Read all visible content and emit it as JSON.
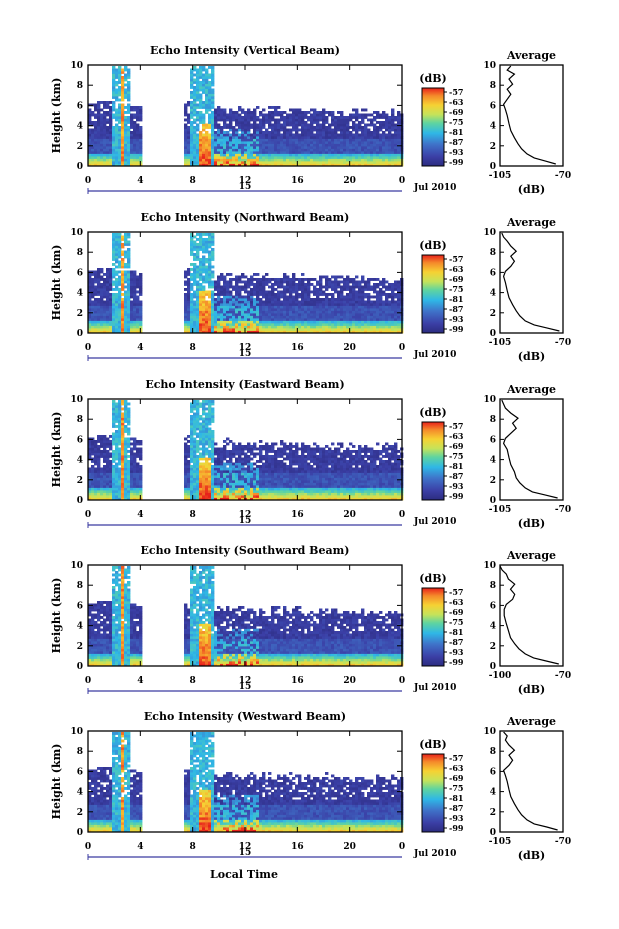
{
  "figure": {
    "month_label": "Jul 2010",
    "day_label": "15",
    "bottom_xlabel": "Local Time",
    "ylabel": "Height (km)",
    "cb_unit": "(dB)",
    "avg_title": "Average",
    "avg_xlabel": "(dB)",
    "colors": {
      "low": "#2c2c80",
      "high": "#e8211b",
      "axis": "#000000"
    }
  },
  "chart_data": [
    {
      "type": "heatmap",
      "title": "Echo Intensity (Vertical Beam)",
      "xlabel": "Local Time",
      "ylabel": "Height (km)",
      "x_ticks": [
        "0",
        "4",
        "8",
        "12",
        "16",
        "20",
        "0"
      ],
      "y_ticks": [
        "0",
        "2",
        "4",
        "6",
        "8",
        "10"
      ],
      "xlim": [
        0,
        24
      ],
      "ylim": [
        0,
        10
      ],
      "data_gap_hours": [
        4,
        7.3
      ],
      "colorbar": {
        "unit": "(dB)",
        "labels": [
          "-57",
          "-63",
          "-69",
          "-75",
          "-81",
          "-87",
          "-93",
          "-99"
        ]
      },
      "average_profile": {
        "title": "Average",
        "xlabel": "(dB)",
        "xlim": [
          -105,
          -70
        ],
        "x_ticks": [
          "-105",
          "-70"
        ],
        "y_ticks": [
          "0",
          "2",
          "4",
          "6",
          "8",
          "10"
        ],
        "points": [
          [
            -74,
            0.2
          ],
          [
            -80,
            0.5
          ],
          [
            -86,
            0.8
          ],
          [
            -90,
            1.2
          ],
          [
            -93,
            1.7
          ],
          [
            -95,
            2.2
          ],
          [
            -97,
            2.8
          ],
          [
            -99,
            3.5
          ],
          [
            -100,
            4.2
          ],
          [
            -101,
            5.0
          ],
          [
            -102,
            5.6
          ],
          [
            -103,
            6.1
          ],
          [
            -101,
            6.6
          ],
          [
            -99,
            7.1
          ],
          [
            -101,
            7.6
          ],
          [
            -98,
            8.1
          ],
          [
            -100,
            8.6
          ],
          [
            -97,
            9.1
          ],
          [
            -101,
            9.5
          ],
          [
            -99,
            9.9
          ]
        ]
      }
    },
    {
      "type": "heatmap",
      "title": "Echo Intensity (Northward Beam)",
      "xlabel": "Local Time",
      "ylabel": "Height (km)",
      "x_ticks": [
        "0",
        "4",
        "8",
        "12",
        "16",
        "20",
        "0"
      ],
      "y_ticks": [
        "0",
        "2",
        "4",
        "6",
        "8",
        "10"
      ],
      "xlim": [
        0,
        24
      ],
      "ylim": [
        0,
        10
      ],
      "data_gap_hours": [
        4,
        7.3
      ],
      "colorbar": {
        "unit": "(dB)",
        "labels": [
          "-57",
          "-63",
          "-69",
          "-75",
          "-81",
          "-87",
          "-93",
          "-99"
        ]
      },
      "average_profile": {
        "title": "Average",
        "xlabel": "(dB)",
        "xlim": [
          -105,
          -70
        ],
        "x_ticks": [
          "-105",
          "-70"
        ],
        "y_ticks": [
          "0",
          "2",
          "4",
          "6",
          "8",
          "10"
        ],
        "points": [
          [
            -72,
            0.2
          ],
          [
            -79,
            0.5
          ],
          [
            -86,
            0.8
          ],
          [
            -91,
            1.2
          ],
          [
            -94,
            1.7
          ],
          [
            -96,
            2.2
          ],
          [
            -98,
            2.8
          ],
          [
            -100,
            3.5
          ],
          [
            -101,
            4.2
          ],
          [
            -102,
            5.0
          ],
          [
            -103,
            5.6
          ],
          [
            -102,
            6.1
          ],
          [
            -99,
            6.6
          ],
          [
            -97,
            7.1
          ],
          [
            -99,
            7.6
          ],
          [
            -96,
            8.1
          ],
          [
            -99,
            8.6
          ],
          [
            -101,
            9.1
          ],
          [
            -103,
            9.5
          ],
          [
            -104,
            9.9
          ]
        ]
      }
    },
    {
      "type": "heatmap",
      "title": "Echo Intensity (Eastward Beam)",
      "xlabel": "Local Time",
      "ylabel": "Height (km)",
      "x_ticks": [
        "0",
        "4",
        "8",
        "12",
        "16",
        "20",
        "0"
      ],
      "y_ticks": [
        "0",
        "2",
        "4",
        "6",
        "8",
        "10"
      ],
      "xlim": [
        0,
        24
      ],
      "ylim": [
        0,
        10
      ],
      "data_gap_hours": [
        4,
        7.3
      ],
      "colorbar": {
        "unit": "(dB)",
        "labels": [
          "-57",
          "-63",
          "-69",
          "-75",
          "-81",
          "-87",
          "-93",
          "-99"
        ]
      },
      "average_profile": {
        "title": "Average",
        "xlabel": "(dB)",
        "xlim": [
          -105,
          -70
        ],
        "x_ticks": [
          "-105",
          "-70"
        ],
        "y_ticks": [
          "0",
          "2",
          "4",
          "6",
          "8",
          "10"
        ],
        "points": [
          [
            -73,
            0.2
          ],
          [
            -80,
            0.5
          ],
          [
            -87,
            0.8
          ],
          [
            -91,
            1.2
          ],
          [
            -94,
            1.7
          ],
          [
            -96,
            2.2
          ],
          [
            -97,
            2.8
          ],
          [
            -99,
            3.5
          ],
          [
            -100,
            4.2
          ],
          [
            -101,
            5.0
          ],
          [
            -103,
            5.6
          ],
          [
            -102,
            6.1
          ],
          [
            -99,
            6.6
          ],
          [
            -96,
            7.1
          ],
          [
            -98,
            7.6
          ],
          [
            -95,
            8.1
          ],
          [
            -99,
            8.6
          ],
          [
            -102,
            9.1
          ],
          [
            -103,
            9.5
          ],
          [
            -104,
            9.9
          ]
        ]
      }
    },
    {
      "type": "heatmap",
      "title": "Echo Intensity (Southward Beam)",
      "xlabel": "Local Time",
      "ylabel": "Height (km)",
      "x_ticks": [
        "0",
        "4",
        "8",
        "12",
        "16",
        "20",
        "0"
      ],
      "y_ticks": [
        "0",
        "2",
        "4",
        "6",
        "8",
        "10"
      ],
      "xlim": [
        0,
        24
      ],
      "ylim": [
        0,
        10
      ],
      "data_gap_hours": [
        4,
        7.3
      ],
      "colorbar": {
        "unit": "(dB)",
        "labels": [
          "-57",
          "-63",
          "-69",
          "-75",
          "-81",
          "-87",
          "-93",
          "-99"
        ]
      },
      "average_profile": {
        "title": "Average",
        "xlabel": "(dB)",
        "xlim": [
          -100,
          -70
        ],
        "x_ticks": [
          "-100",
          "-70"
        ],
        "y_ticks": [
          "0",
          "2",
          "4",
          "6",
          "8",
          "10"
        ],
        "points": [
          [
            -72,
            0.2
          ],
          [
            -78,
            0.5
          ],
          [
            -84,
            0.8
          ],
          [
            -88,
            1.2
          ],
          [
            -91,
            1.7
          ],
          [
            -93,
            2.2
          ],
          [
            -95,
            2.8
          ],
          [
            -96,
            3.5
          ],
          [
            -97,
            4.2
          ],
          [
            -98,
            5.0
          ],
          [
            -98,
            5.6
          ],
          [
            -97,
            6.1
          ],
          [
            -94,
            6.6
          ],
          [
            -93,
            7.1
          ],
          [
            -95,
            7.6
          ],
          [
            -93,
            8.1
          ],
          [
            -96,
            8.6
          ],
          [
            -97,
            9.1
          ],
          [
            -99,
            9.5
          ],
          [
            -100,
            9.9
          ]
        ]
      }
    },
    {
      "type": "heatmap",
      "title": "Echo Intensity (Westward Beam)",
      "xlabel": "Local Time",
      "ylabel": "Height (km)",
      "x_ticks": [
        "0",
        "4",
        "8",
        "12",
        "16",
        "20",
        "0"
      ],
      "y_ticks": [
        "0",
        "2",
        "4",
        "6",
        "8",
        "10"
      ],
      "xlim": [
        0,
        24
      ],
      "ylim": [
        0,
        10
      ],
      "data_gap_hours": [
        4,
        7.3
      ],
      "colorbar": {
        "unit": "(dB)",
        "labels": [
          "-57",
          "-63",
          "-69",
          "-75",
          "-81",
          "-87",
          "-93",
          "-99"
        ]
      },
      "average_profile": {
        "title": "Average",
        "xlabel": "(dB)",
        "xlim": [
          -105,
          -70
        ],
        "x_ticks": [
          "-105",
          "-70"
        ],
        "y_ticks": [
          "0",
          "2",
          "4",
          "6",
          "8",
          "10"
        ],
        "points": [
          [
            -73,
            0.2
          ],
          [
            -79,
            0.5
          ],
          [
            -86,
            0.8
          ],
          [
            -90,
            1.2
          ],
          [
            -93,
            1.7
          ],
          [
            -95,
            2.2
          ],
          [
            -97,
            2.8
          ],
          [
            -99,
            3.5
          ],
          [
            -100,
            4.2
          ],
          [
            -101,
            5.0
          ],
          [
            -102,
            5.6
          ],
          [
            -103,
            6.1
          ],
          [
            -100,
            6.6
          ],
          [
            -98,
            7.1
          ],
          [
            -100,
            7.6
          ],
          [
            -97,
            8.1
          ],
          [
            -100,
            8.6
          ],
          [
            -102,
            9.1
          ],
          [
            -101,
            9.5
          ],
          [
            -103,
            9.9
          ]
        ]
      }
    }
  ]
}
